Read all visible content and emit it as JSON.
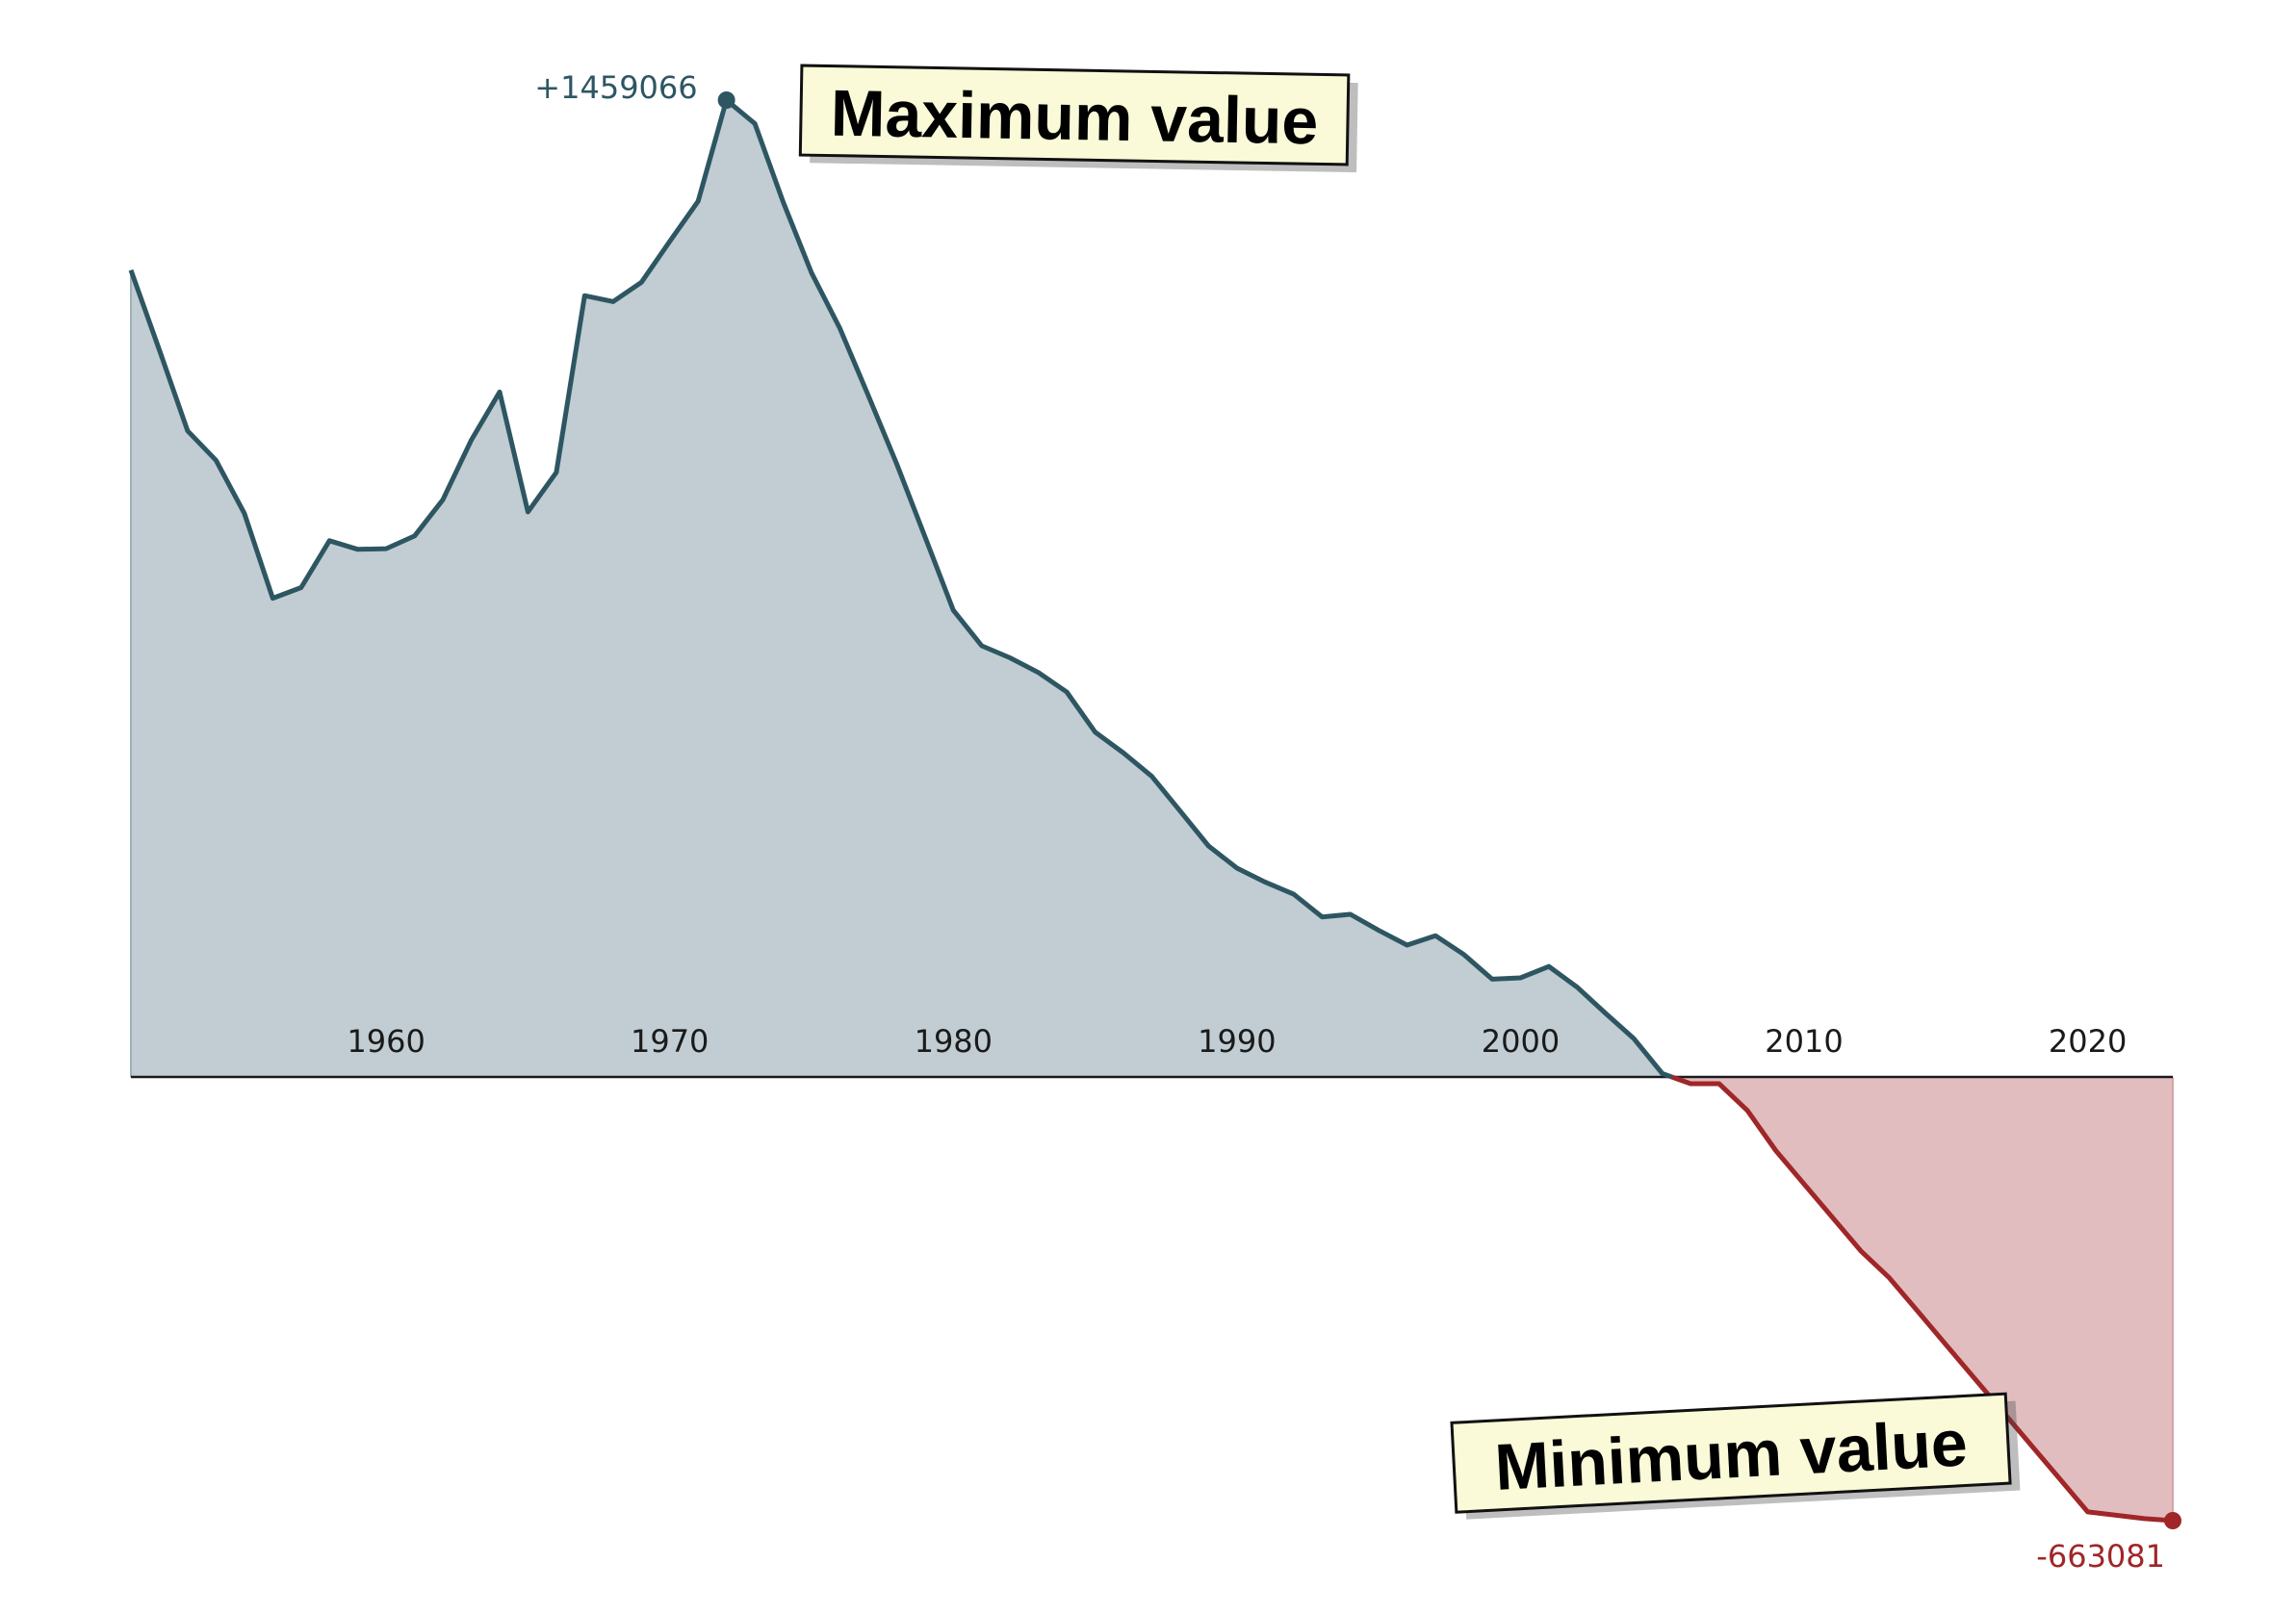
{
  "chart_data": {
    "type": "area",
    "title": "",
    "xlabel": "",
    "ylabel": "",
    "x_ticks": [
      1960,
      1970,
      1980,
      1990,
      2000,
      2010,
      2020
    ],
    "xlim": [
      1951,
      2023
    ],
    "ylim": [
      -663081,
      1459066
    ],
    "x": [
      1951,
      1952,
      1953,
      1954,
      1955,
      1956,
      1957,
      1958,
      1959,
      1960,
      1961,
      1962,
      1963,
      1964,
      1965,
      1966,
      1967,
      1968,
      1969,
      1970,
      1971,
      1972,
      1973,
      1974,
      1975,
      1976,
      1977,
      1978,
      1979,
      1980,
      1981,
      1982,
      1983,
      1984,
      1985,
      1986,
      1987,
      1988,
      1989,
      1990,
      1991,
      1992,
      1993,
      1994,
      1995,
      1996,
      1997,
      1998,
      1999,
      2000,
      2001,
      2002,
      2003,
      2004,
      2005,
      2006,
      2007,
      2008,
      2009,
      2010,
      2011,
      2012,
      2013,
      2014,
      2015,
      2016,
      2017,
      2018,
      2019,
      2020,
      2021,
      2022,
      2023
    ],
    "values": [
      1205000,
      1086000,
      965000,
      921000,
      842000,
      715000,
      731000,
      801000,
      788000,
      789000,
      808000,
      862000,
      951000,
      1023000,
      844000,
      903000,
      1167000,
      1158000,
      1187000,
      1248000,
      1308000,
      1459066,
      1424000,
      1307000,
      1201000,
      1118000,
      1018000,
      916000,
      807000,
      697000,
      644000,
      626000,
      604000,
      575000,
      515000,
      484000,
      449000,
      397000,
      345000,
      312000,
      291000,
      273000,
      239000,
      243000,
      219000,
      197000,
      211000,
      183000,
      146000,
      148000,
      165000,
      134000,
      95000,
      57000,
      5000,
      -10000,
      -10000,
      -50000,
      -110000,
      -160000,
      -210000,
      -260000,
      -300000,
      -350000,
      -400000,
      -450000,
      -500000,
      -550000,
      -600000,
      -650000,
      -655000,
      -660000,
      -663081
    ],
    "positive_color": "#2e5662",
    "positive_fill": "#c1cdd2",
    "negative_color": "#a02628",
    "negative_fill": "#e1bdc0",
    "max_label": "+1459066",
    "min_label": "-663081",
    "max_annotation": "Maximum value",
    "min_annotation": "Minimum value",
    "grid": false,
    "legend": "none"
  }
}
